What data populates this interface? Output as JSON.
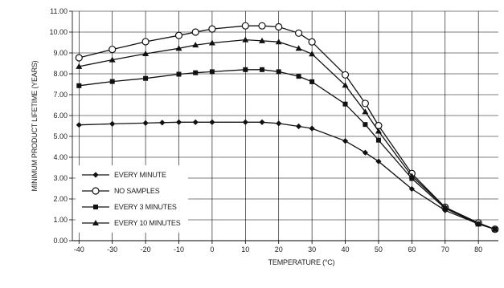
{
  "chart_data": {
    "type": "line",
    "title": "",
    "xlabel": "TEMPERATURE (°C)",
    "ylabel": "MINIMUM PRODUCT LIFETIME (YEARS)",
    "xlim": [
      -42,
      86
    ],
    "ylim": [
      0,
      11
    ],
    "x_ticks": [
      "-40",
      "-30",
      "-20",
      "-10",
      "0",
      "10",
      "20",
      "30",
      "40",
      "50",
      "60",
      "70",
      "80"
    ],
    "y_ticks": [
      "0.00",
      "1.00",
      "2.00",
      "3.00",
      "4.00",
      "5.00",
      "6.00",
      "7.00",
      "8.00",
      "9.00",
      "10.00",
      "11.00"
    ],
    "grid": true,
    "legend_position": "bottom-left",
    "series": [
      {
        "name": "EVERY MINUTE",
        "marker": "diamond",
        "x": [
          -40,
          -30,
          -20,
          -15,
          -10,
          -5,
          0,
          10,
          15,
          20,
          26,
          30,
          40,
          46,
          50,
          60,
          70,
          80,
          85
        ],
        "values": [
          5.55,
          5.6,
          5.64,
          5.66,
          5.68,
          5.68,
          5.68,
          5.68,
          5.68,
          5.62,
          5.48,
          5.38,
          4.78,
          4.22,
          3.8,
          2.48,
          1.45,
          0.8,
          0.55
        ]
      },
      {
        "name": "NO SAMPLES",
        "marker": "circle",
        "x": [
          -40,
          -30,
          -20,
          -10,
          -5,
          0,
          10,
          15,
          20,
          26,
          30,
          40,
          46,
          50,
          60,
          70,
          80,
          85
        ],
        "values": [
          8.77,
          9.17,
          9.54,
          9.84,
          10.0,
          10.15,
          10.3,
          10.3,
          10.25,
          9.95,
          9.53,
          7.95,
          6.58,
          5.52,
          3.22,
          1.6,
          0.85,
          0.55
        ]
      },
      {
        "name": "EVERY 3 MINUTES",
        "marker": "square",
        "x": [
          -40,
          -30,
          -20,
          -10,
          -5,
          0,
          10,
          15,
          20,
          26,
          30,
          40,
          46,
          50,
          60,
          70,
          80,
          85
        ],
        "values": [
          7.43,
          7.63,
          7.78,
          7.98,
          8.05,
          8.1,
          8.2,
          8.2,
          8.1,
          7.88,
          7.62,
          6.55,
          5.57,
          4.82,
          2.98,
          1.55,
          0.8,
          0.55
        ]
      },
      {
        "name": "EVERY 10 MINUTES",
        "marker": "triangle",
        "x": [
          -40,
          -30,
          -20,
          -10,
          -5,
          0,
          10,
          15,
          20,
          26,
          30,
          40,
          46,
          50,
          60,
          70,
          80,
          85
        ],
        "values": [
          8.35,
          8.67,
          8.96,
          9.22,
          9.38,
          9.48,
          9.63,
          9.58,
          9.53,
          9.22,
          8.95,
          7.45,
          6.18,
          5.25,
          3.1,
          1.6,
          0.8,
          0.55
        ]
      }
    ]
  }
}
